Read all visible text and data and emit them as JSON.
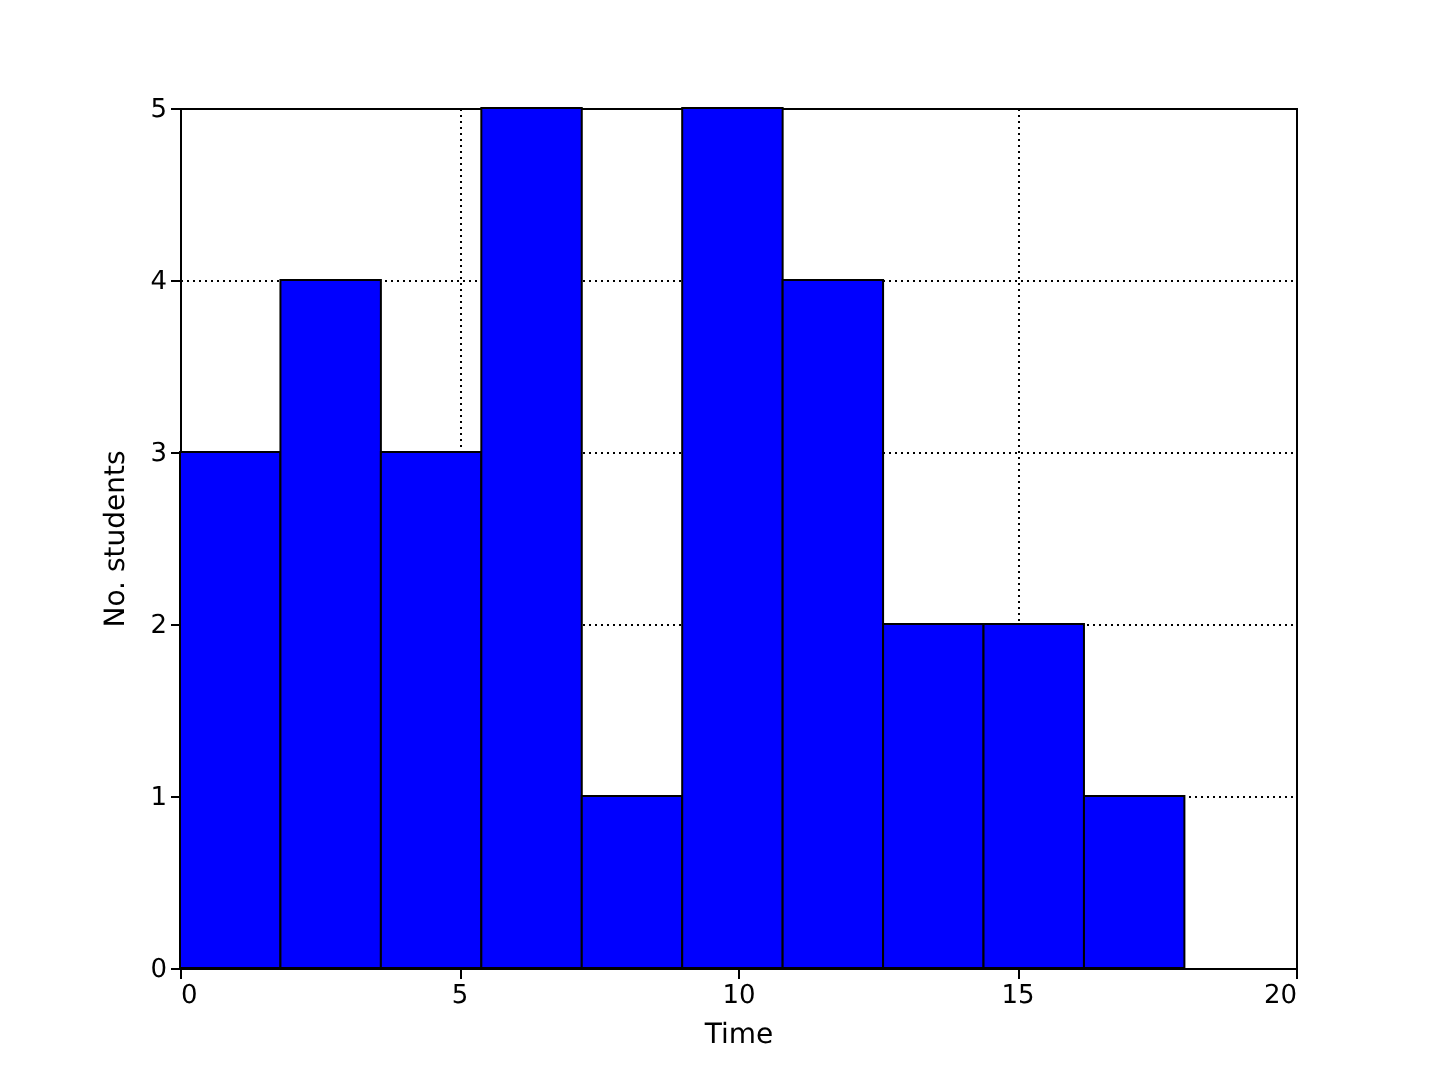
{
  "chart_data": {
    "type": "histogram",
    "xlabel": "Time",
    "ylabel": "No. students",
    "bins": [
      0,
      1.8,
      3.6,
      5.4,
      7.2,
      9,
      10.8,
      12.6,
      14.4,
      16.2,
      18
    ],
    "values": [
      3,
      4,
      3,
      5,
      1,
      5,
      4,
      2,
      2,
      1
    ],
    "color": "#0000ff",
    "xlim": [
      0,
      20
    ],
    "xticks": [
      0,
      5,
      10,
      15,
      20
    ],
    "ylim": [
      0,
      5
    ],
    "yticks": [
      0,
      1,
      2,
      3,
      4,
      5
    ],
    "grid": true,
    "line_style": "dotted"
  }
}
